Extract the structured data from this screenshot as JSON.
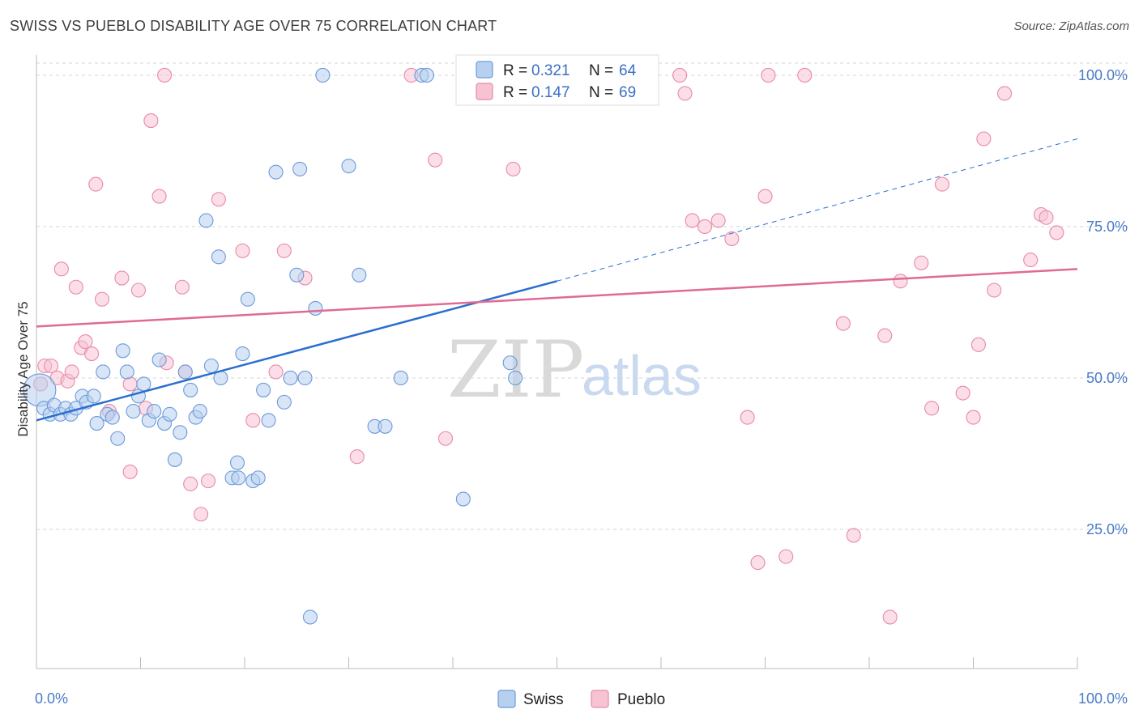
{
  "header": {
    "title": "SWISS VS PUEBLO DISABILITY AGE OVER 75 CORRELATION CHART",
    "source": "Source: ZipAtlas.com"
  },
  "watermark": {
    "zip": "ZIP",
    "atlas": "atlas"
  },
  "legend": {
    "swiss": {
      "r_label": "R = ",
      "r_value": "0.321",
      "n_label": "N = ",
      "n_value": "64"
    },
    "pueblo": {
      "r_label": "R = ",
      "r_value": "0.147",
      "n_label": "N = ",
      "n_value": "69"
    }
  },
  "bottom_legend": {
    "swiss": "Swiss",
    "pueblo": "Pueblo"
  },
  "colors": {
    "swiss_fill": "#b7d0f0",
    "swiss_stroke": "#6d9ad8",
    "swiss_line": "#2a6fcf",
    "pueblo_fill": "#f7c3d3",
    "pueblo_stroke": "#e88aa8",
    "pueblo_line": "#e06a93",
    "axis_label": "#4a7bc8",
    "grid": "#d6d6d6"
  },
  "chart_data": {
    "type": "scatter",
    "title": "SWISS VS PUEBLO DISABILITY AGE OVER 75 CORRELATION CHART",
    "xlabel": "",
    "ylabel": "Disability Age Over 75",
    "xlim": [
      0,
      100
    ],
    "ylim": [
      2,
      102
    ],
    "x_tick_labels": [
      "0.0%",
      "100.0%"
    ],
    "y_ticks": [
      25,
      50,
      75,
      100
    ],
    "y_tick_labels": [
      "25.0%",
      "50.0%",
      "75.0%",
      "100.0%"
    ],
    "grid": "horizontal dashed",
    "series": [
      {
        "name": "Swiss",
        "r": 0.321,
        "n": 64,
        "trend": {
          "x0": 0,
          "y0": 43.0,
          "x1": 50,
          "y1": 66.0,
          "extend_to_x": 100,
          "extend_y": 89.5
        },
        "points": [
          [
            0.3,
            48.0
          ],
          [
            0.7,
            45.0
          ],
          [
            1.3,
            44.0
          ],
          [
            1.7,
            45.5
          ],
          [
            2.3,
            44.0
          ],
          [
            2.8,
            45.0
          ],
          [
            3.3,
            44.0
          ],
          [
            3.8,
            45.0
          ],
          [
            4.4,
            47.0
          ],
          [
            4.8,
            46.0
          ],
          [
            5.5,
            47.0
          ],
          [
            5.8,
            42.5
          ],
          [
            6.4,
            51.0
          ],
          [
            6.8,
            44.0
          ],
          [
            7.3,
            43.5
          ],
          [
            7.8,
            40.0
          ],
          [
            8.3,
            54.5
          ],
          [
            8.7,
            51.0
          ],
          [
            9.3,
            44.5
          ],
          [
            9.8,
            47.0
          ],
          [
            10.3,
            49.0
          ],
          [
            10.8,
            43.0
          ],
          [
            11.3,
            44.5
          ],
          [
            11.8,
            53.0
          ],
          [
            12.3,
            42.5
          ],
          [
            12.8,
            44.0
          ],
          [
            13.3,
            36.5
          ],
          [
            13.8,
            41.0
          ],
          [
            14.3,
            51.0
          ],
          [
            14.8,
            48.0
          ],
          [
            15.3,
            43.5
          ],
          [
            15.7,
            44.5
          ],
          [
            16.3,
            76.0
          ],
          [
            16.8,
            52.0
          ],
          [
            17.5,
            70.0
          ],
          [
            17.7,
            50.0
          ],
          [
            18.8,
            33.5
          ],
          [
            19.3,
            36.0
          ],
          [
            19.4,
            33.5
          ],
          [
            19.8,
            54.0
          ],
          [
            20.3,
            63.0
          ],
          [
            20.8,
            33.0
          ],
          [
            21.3,
            33.5
          ],
          [
            21.8,
            48.0
          ],
          [
            22.3,
            43.0
          ],
          [
            23.0,
            84.0
          ],
          [
            23.8,
            46.0
          ],
          [
            24.4,
            50.0
          ],
          [
            25.0,
            67.0
          ],
          [
            25.3,
            84.5
          ],
          [
            25.8,
            50.0
          ],
          [
            26.8,
            61.5
          ],
          [
            26.3,
            10.5
          ],
          [
            27.5,
            100.0
          ],
          [
            30.0,
            85.0
          ],
          [
            31.0,
            67.0
          ],
          [
            32.5,
            42.0
          ],
          [
            33.5,
            42.0
          ],
          [
            35.0,
            50.0
          ],
          [
            37.0,
            100.0
          ],
          [
            37.5,
            100.0
          ],
          [
            41.0,
            30.0
          ],
          [
            45.5,
            52.5
          ],
          [
            46.0,
            50.0
          ]
        ]
      },
      {
        "name": "Pueblo",
        "r": 0.147,
        "n": 69,
        "trend": {
          "x0": 0,
          "y0": 58.5,
          "x1": 100,
          "y1": 68.0
        },
        "points": [
          [
            0.4,
            49.0
          ],
          [
            0.8,
            52.0
          ],
          [
            1.4,
            52.0
          ],
          [
            2.0,
            50.0
          ],
          [
            2.4,
            68.0
          ],
          [
            3.0,
            49.5
          ],
          [
            3.4,
            51.0
          ],
          [
            3.8,
            65.0
          ],
          [
            4.3,
            55.0
          ],
          [
            4.7,
            56.0
          ],
          [
            5.3,
            54.0
          ],
          [
            5.7,
            82.0
          ],
          [
            6.3,
            63.0
          ],
          [
            7.0,
            44.5
          ],
          [
            8.2,
            66.5
          ],
          [
            9.0,
            49.0
          ],
          [
            9.0,
            34.5
          ],
          [
            9.8,
            64.5
          ],
          [
            10.5,
            45.0
          ],
          [
            11.0,
            92.5
          ],
          [
            11.8,
            80.0
          ],
          [
            12.3,
            100.0
          ],
          [
            12.5,
            52.5
          ],
          [
            14.0,
            65.0
          ],
          [
            14.3,
            51.0
          ],
          [
            14.8,
            32.5
          ],
          [
            15.8,
            27.5
          ],
          [
            16.5,
            33.0
          ],
          [
            17.5,
            79.5
          ],
          [
            19.8,
            71.0
          ],
          [
            20.8,
            43.0
          ],
          [
            23.0,
            51.0
          ],
          [
            23.8,
            71.0
          ],
          [
            25.8,
            66.5
          ],
          [
            30.8,
            37.0
          ],
          [
            36.0,
            100.0
          ],
          [
            38.3,
            86.0
          ],
          [
            39.3,
            40.0
          ],
          [
            45.8,
            84.5
          ],
          [
            61.8,
            100.0
          ],
          [
            62.3,
            97.0
          ],
          [
            63.0,
            76.0
          ],
          [
            64.2,
            75.0
          ],
          [
            65.5,
            76.0
          ],
          [
            66.8,
            73.0
          ],
          [
            68.3,
            43.5
          ],
          [
            69.3,
            19.5
          ],
          [
            70.0,
            80.0
          ],
          [
            70.3,
            100.0
          ],
          [
            72.0,
            20.5
          ],
          [
            73.8,
            100.0
          ],
          [
            77.5,
            59.0
          ],
          [
            78.5,
            24.0
          ],
          [
            81.5,
            57.0
          ],
          [
            82.0,
            10.5
          ],
          [
            83.0,
            66.0
          ],
          [
            85.0,
            69.0
          ],
          [
            86.0,
            45.0
          ],
          [
            87.0,
            82.0
          ],
          [
            89.0,
            47.5
          ],
          [
            90.0,
            43.5
          ],
          [
            90.5,
            55.5
          ],
          [
            91.0,
            89.5
          ],
          [
            92.0,
            64.5
          ],
          [
            93.0,
            97.0
          ],
          [
            95.5,
            69.5
          ],
          [
            96.5,
            77.0
          ],
          [
            97.0,
            76.5
          ],
          [
            98.0,
            74.0
          ]
        ]
      }
    ]
  }
}
